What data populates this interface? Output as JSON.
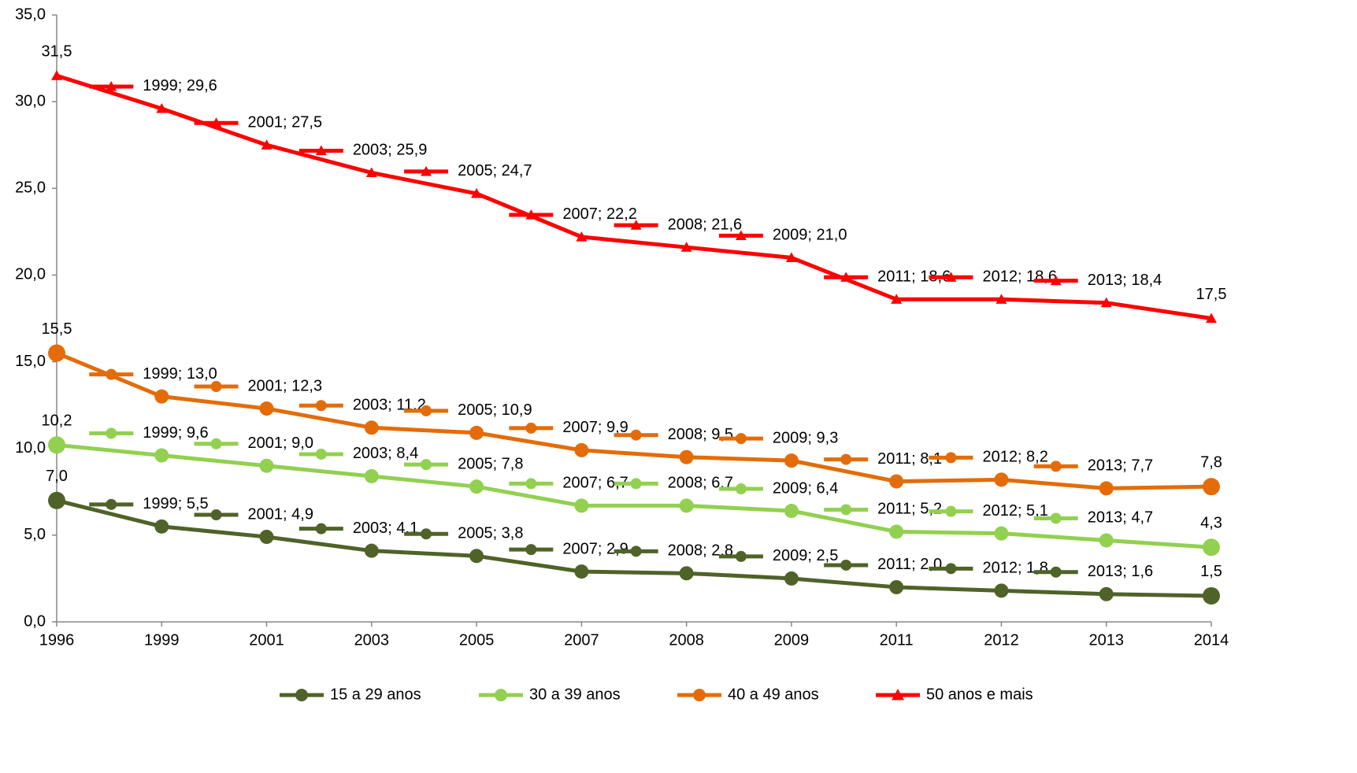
{
  "chart_data": {
    "type": "line",
    "categories": [
      "1996",
      "1999",
      "2001",
      "2003",
      "2005",
      "2007",
      "2008",
      "2009",
      "2011",
      "2012",
      "2013",
      "2014"
    ],
    "ylim": [
      0,
      35
    ],
    "yticks": [
      {
        "value": 0,
        "label": "0,0"
      },
      {
        "value": 5,
        "label": "5,0"
      },
      {
        "value": 10,
        "label": "10,0"
      },
      {
        "value": 15,
        "label": "15,0"
      },
      {
        "value": 20,
        "label": "20,0"
      },
      {
        "value": 25,
        "label": "25,0"
      },
      {
        "value": 30,
        "label": "30,0"
      },
      {
        "value": 35,
        "label": "35,0"
      }
    ],
    "grid": false,
    "legend": "bottom",
    "series": [
      {
        "name": "15 a 29 anos",
        "color": "#4f6228",
        "marker": "circle",
        "values": [
          7.0,
          5.5,
          4.9,
          4.1,
          3.8,
          2.9,
          2.8,
          2.5,
          2.0,
          1.8,
          1.6,
          1.5
        ],
        "value_labels": [
          "7,0",
          "1999; 5,5",
          "2001; 4,9",
          "2003; 4,1",
          "2005; 3,8",
          "2007; 2,9",
          "2008; 2,8",
          "2009; 2,5",
          "2011; 2,0",
          "2012; 1,8",
          "2013; 1,6",
          "1,5"
        ]
      },
      {
        "name": "30 a 39 anos",
        "color": "#92d050",
        "marker": "circle",
        "values": [
          10.2,
          9.6,
          9.0,
          8.4,
          7.8,
          6.7,
          6.7,
          6.4,
          5.2,
          5.1,
          4.7,
          4.3
        ],
        "value_labels": [
          "10,2",
          "1999; 9,6",
          "2001; 9,0",
          "2003; 8,4",
          "2005; 7,8",
          "2007; 6,7",
          "2008; 6,7",
          "2009; 6,4",
          "2011; 5,2",
          "2012; 5,1",
          "2013; 4,7",
          "4,3"
        ]
      },
      {
        "name": "40 a 49 anos",
        "color": "#e36c09",
        "marker": "circle",
        "values": [
          15.5,
          13.0,
          12.3,
          11.2,
          10.9,
          9.9,
          9.5,
          9.3,
          8.1,
          8.2,
          7.7,
          7.8
        ],
        "value_labels": [
          "15,5",
          "1999; 13,0",
          "2001; 12,3",
          "2003; 11,2",
          "2005; 10,9",
          "2007; 9,9",
          "2008; 9,5",
          "2009; 9,3",
          "2011; 8,1",
          "2012; 8,2",
          "2013; 7,7",
          "7,8"
        ]
      },
      {
        "name": "50 anos e mais",
        "color": "#ff0000",
        "marker": "triangle",
        "values": [
          31.5,
          29.6,
          27.5,
          25.9,
          24.7,
          22.2,
          21.6,
          21.0,
          18.6,
          18.6,
          18.4,
          17.5
        ],
        "value_labels": [
          "31,5",
          "1999; 29,6",
          "2001; 27,5",
          "2003; 25,9",
          "2005; 24,7",
          "2007; 22,2",
          "2008; 21,6",
          "2009; 21,0",
          "2011; 18,6",
          "2012; 18,6",
          "2013; 18,4",
          "17,5"
        ]
      }
    ]
  }
}
